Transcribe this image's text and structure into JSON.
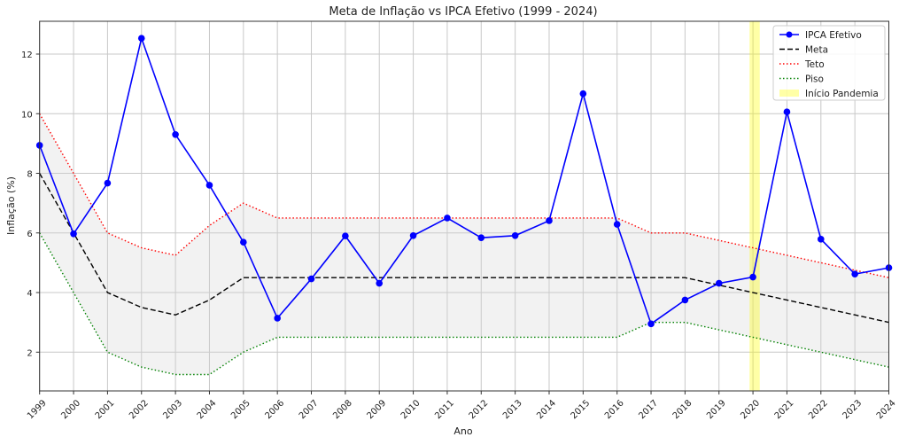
{
  "chart_data": {
    "type": "line",
    "title": "Meta de Inflação vs IPCA Efetivo (1999 - 2024)",
    "xlabel": "Ano",
    "ylabel": "Inflação (%)",
    "x": [
      1999,
      2000,
      2001,
      2002,
      2003,
      2004,
      2005,
      2006,
      2007,
      2008,
      2009,
      2010,
      2011,
      2012,
      2013,
      2014,
      2015,
      2016,
      2017,
      2018,
      2019,
      2020,
      2021,
      2022,
      2023,
      2024
    ],
    "xlim": [
      1999,
      2024
    ],
    "ylim": [
      0.7,
      13.1
    ],
    "yticks": [
      2,
      4,
      6,
      8,
      10,
      12
    ],
    "grid": true,
    "legend_position": "top-right",
    "series": [
      {
        "name": "IPCA Efetivo",
        "style": "solid-marker",
        "color": "#0000ff",
        "values": [
          8.94,
          5.97,
          7.67,
          12.53,
          9.3,
          7.6,
          5.69,
          3.14,
          4.46,
          5.9,
          4.31,
          5.91,
          6.5,
          5.84,
          5.91,
          6.41,
          10.67,
          6.29,
          2.95,
          3.75,
          4.31,
          4.52,
          10.06,
          5.79,
          4.62,
          4.83
        ]
      },
      {
        "name": "Meta",
        "style": "dashed",
        "color": "#000000",
        "values": [
          8,
          6,
          4,
          3.5,
          3.25,
          3.75,
          4.5,
          4.5,
          4.5,
          4.5,
          4.5,
          4.5,
          4.5,
          4.5,
          4.5,
          4.5,
          4.5,
          4.5,
          4.5,
          4.5,
          4.25,
          4,
          3.75,
          3.5,
          3.25,
          3
        ]
      },
      {
        "name": "Teto",
        "style": "dotted",
        "color": "#ff0000",
        "values": [
          10,
          8,
          6,
          5.5,
          5.25,
          6.25,
          7,
          6.5,
          6.5,
          6.5,
          6.5,
          6.5,
          6.5,
          6.5,
          6.5,
          6.5,
          6.5,
          6.5,
          6,
          6,
          5.75,
          5.5,
          5.25,
          5,
          4.75,
          4.5
        ]
      },
      {
        "name": "Piso",
        "style": "dotted",
        "color": "#008000",
        "values": [
          6,
          4,
          2,
          1.5,
          1.25,
          1.25,
          2,
          2.5,
          2.5,
          2.5,
          2.5,
          2.5,
          2.5,
          2.5,
          2.5,
          2.5,
          2.5,
          2.5,
          3,
          3,
          2.75,
          2.5,
          2.25,
          2,
          1.75,
          1.5
        ]
      }
    ],
    "band": {
      "between": [
        "Piso",
        "Teto"
      ],
      "color": "#d3d3d3"
    },
    "span": {
      "name": "Início Pandemia",
      "x_range": [
        2019.9,
        2020.2
      ],
      "color": "#ffff00"
    }
  }
}
